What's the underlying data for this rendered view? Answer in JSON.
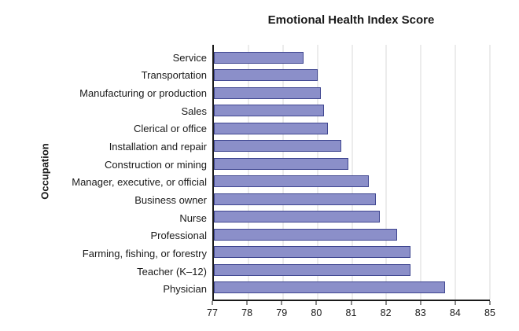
{
  "chart_data": {
    "type": "bar",
    "orientation": "horizontal",
    "title": "Emotional Health Index Score",
    "xlabel": "",
    "ylabel": "Occupation",
    "categories": [
      "Service",
      "Transportation",
      "Manufacturing or production",
      "Sales",
      "Clerical or office",
      "Installation and repair",
      "Construction or mining",
      "Manager, executive, or official",
      "Business owner",
      "Nurse",
      "Professional",
      "Farming, fishing, or forestry",
      "Teacher (K–12)",
      "Physician"
    ],
    "values": [
      79.6,
      80.0,
      80.1,
      80.2,
      80.3,
      80.7,
      80.9,
      81.5,
      81.7,
      81.8,
      82.3,
      82.7,
      82.7,
      83.7
    ],
    "xlim": [
      77,
      85
    ],
    "xticks": [
      77,
      78,
      79,
      80,
      81,
      82,
      83,
      84,
      85
    ],
    "grid": true,
    "legend": "none",
    "bar_color": "#8b8fc9",
    "bar_border_color": "#3f4690",
    "gridline_color": "#d9d9d9",
    "axis_color": "#1a1a1a"
  }
}
